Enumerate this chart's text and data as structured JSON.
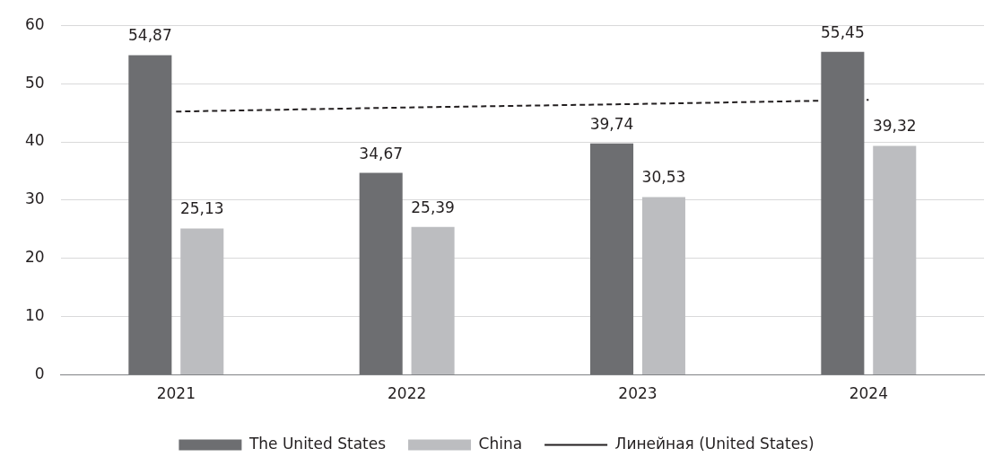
{
  "chart_data": {
    "type": "bar",
    "categories": [
      "2021",
      "2022",
      "2023",
      "2024"
    ],
    "series": [
      {
        "name": "The United States",
        "color": "#6d6e71",
        "values": [
          54.87,
          34.67,
          39.74,
          55.45
        ],
        "value_labels": [
          "54,87",
          "34,67",
          "39,74",
          "55,45"
        ]
      },
      {
        "name": "China",
        "color": "#bcbdc0",
        "values": [
          25.13,
          25.39,
          30.53,
          39.32
        ],
        "value_labels": [
          "25,13",
          "25,39",
          "30,53",
          "39,32"
        ]
      },
      {
        "name": "Линейная (United States)",
        "type": "line",
        "color": "#231f20",
        "line_style": "dashed",
        "marker": "none",
        "values": [
          45.2,
          45.9,
          46.5,
          47.2
        ]
      }
    ],
    "ylim": [
      0,
      60
    ],
    "yticks": [
      0,
      10,
      20,
      30,
      40,
      50,
      60
    ],
    "grid": "y",
    "legend": "bottom"
  }
}
